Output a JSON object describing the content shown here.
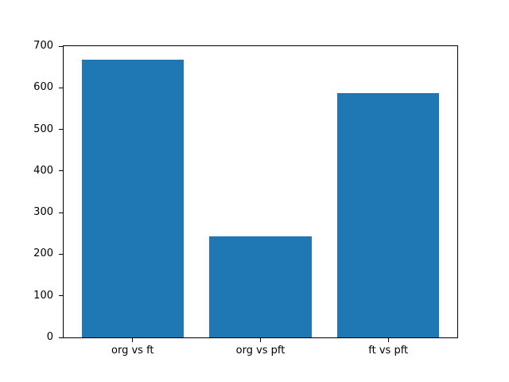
{
  "chart_data": {
    "type": "bar",
    "title": "",
    "xlabel": "",
    "ylabel": "",
    "categories": [
      "org vs ft",
      "org vs pft",
      "ft vs pft"
    ],
    "values": [
      668,
      242,
      588
    ],
    "ylim": [
      0,
      700
    ],
    "yticks": [
      0,
      100,
      200,
      300,
      400,
      500,
      600,
      700
    ],
    "grid": false,
    "legend": null,
    "bar_color": "#1f77b4",
    "bar_width_frac": 0.8,
    "x_pad_frac": 0.14
  },
  "figure": {
    "background": "#ffffff",
    "spine_color": "#000000",
    "tick_color": "#000000",
    "tick_label_color": "#000000"
  }
}
